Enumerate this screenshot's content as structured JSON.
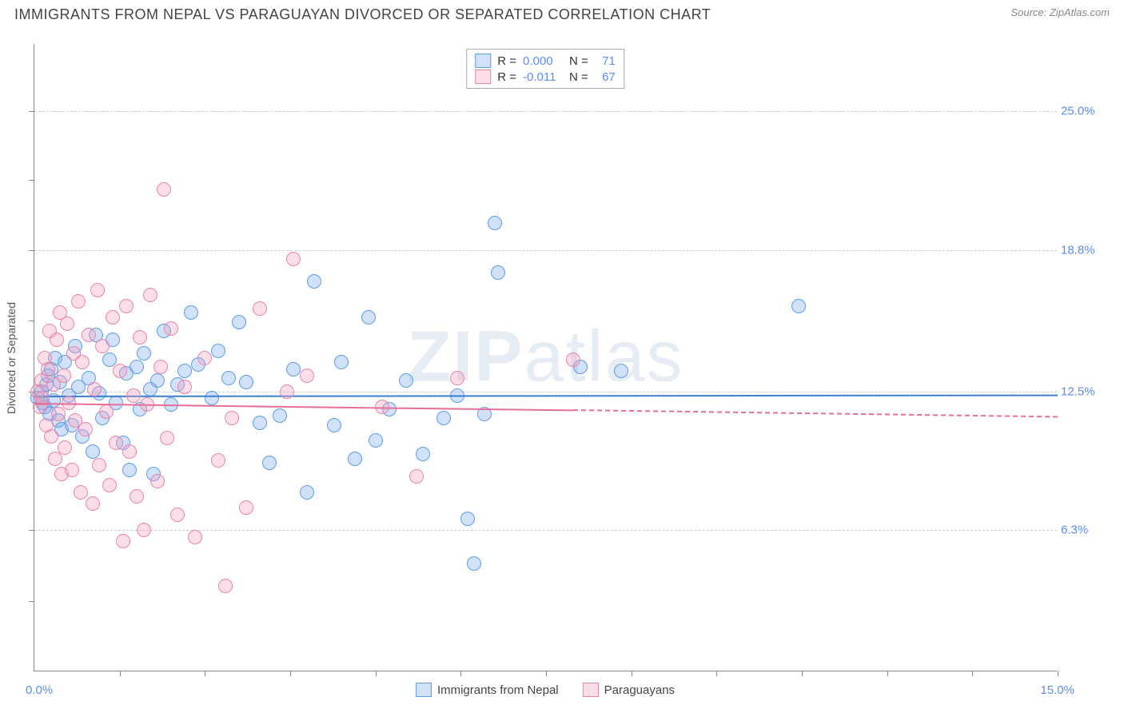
{
  "title": "IMMIGRANTS FROM NEPAL VS PARAGUAYAN DIVORCED OR SEPARATED CORRELATION CHART",
  "source": "Source: ZipAtlas.com",
  "watermark_bold": "ZIP",
  "watermark_light": "atlas",
  "chart": {
    "type": "scatter",
    "xlim": [
      0,
      15
    ],
    "ylim": [
      0,
      28
    ],
    "y_gridlines": [
      6.3,
      12.5,
      18.8,
      25.0
    ],
    "y_tick_labels": [
      "6.3%",
      "12.5%",
      "18.8%",
      "25.0%"
    ],
    "x_tick_positions": [
      1.25,
      2.5,
      3.75,
      5.0,
      6.25,
      7.5,
      8.75,
      10.0,
      11.25,
      12.5,
      13.75,
      15.0
    ],
    "y_tick_positions": [
      3.15,
      6.3,
      9.45,
      12.5,
      15.65,
      18.8,
      21.95,
      25.0
    ],
    "x_min_label": "0.0%",
    "x_max_label": "15.0%",
    "y_axis_label": "Divorced or Separated",
    "background_color": "#ffffff",
    "grid_color": "#cccccc",
    "axis_color": "#888888",
    "label_color": "#5b8def",
    "point_radius": 9,
    "point_stroke_width": 1.5,
    "series": [
      {
        "name": "Immigrants from Nepal",
        "fill": "rgba(120,170,235,0.35)",
        "stroke": "#5f9de8",
        "R": "0.000",
        "N": "71",
        "trend": {
          "y_start": 12.3,
          "y_end": 12.35,
          "x_start": 0,
          "x_end": 15,
          "style": "solid",
          "color": "#3a7fd5"
        },
        "points": [
          [
            0.05,
            12.2
          ],
          [
            0.1,
            12.5
          ],
          [
            0.12,
            12.0
          ],
          [
            0.15,
            11.8
          ],
          [
            0.18,
            12.8
          ],
          [
            0.2,
            13.2
          ],
          [
            0.22,
            11.5
          ],
          [
            0.25,
            13.5
          ],
          [
            0.28,
            12.1
          ],
          [
            0.3,
            14.0
          ],
          [
            0.35,
            11.2
          ],
          [
            0.38,
            12.9
          ],
          [
            0.4,
            10.8
          ],
          [
            0.45,
            13.8
          ],
          [
            0.5,
            12.3
          ],
          [
            0.55,
            11.0
          ],
          [
            0.6,
            14.5
          ],
          [
            0.65,
            12.7
          ],
          [
            0.7,
            10.5
          ],
          [
            0.8,
            13.1
          ],
          [
            0.85,
            9.8
          ],
          [
            0.9,
            15.0
          ],
          [
            0.95,
            12.4
          ],
          [
            1.0,
            11.3
          ],
          [
            1.1,
            13.9
          ],
          [
            1.15,
            14.8
          ],
          [
            1.2,
            12.0
          ],
          [
            1.3,
            10.2
          ],
          [
            1.35,
            13.3
          ],
          [
            1.4,
            9.0
          ],
          [
            1.5,
            13.6
          ],
          [
            1.55,
            11.7
          ],
          [
            1.6,
            14.2
          ],
          [
            1.7,
            12.6
          ],
          [
            1.75,
            8.8
          ],
          [
            1.8,
            13.0
          ],
          [
            1.9,
            15.2
          ],
          [
            2.0,
            11.9
          ],
          [
            2.1,
            12.8
          ],
          [
            2.2,
            13.4
          ],
          [
            2.3,
            16.0
          ],
          [
            2.4,
            13.7
          ],
          [
            2.6,
            12.2
          ],
          [
            2.7,
            14.3
          ],
          [
            2.85,
            13.1
          ],
          [
            3.0,
            15.6
          ],
          [
            3.1,
            12.9
          ],
          [
            3.3,
            11.1
          ],
          [
            3.45,
            9.3
          ],
          [
            3.6,
            11.4
          ],
          [
            3.8,
            13.5
          ],
          [
            4.0,
            8.0
          ],
          [
            4.1,
            17.4
          ],
          [
            4.4,
            11.0
          ],
          [
            4.5,
            13.8
          ],
          [
            4.7,
            9.5
          ],
          [
            4.9,
            15.8
          ],
          [
            5.0,
            10.3
          ],
          [
            5.2,
            11.7
          ],
          [
            5.45,
            13.0
          ],
          [
            5.7,
            9.7
          ],
          [
            6.0,
            11.3
          ],
          [
            6.2,
            12.3
          ],
          [
            6.35,
            6.8
          ],
          [
            6.45,
            4.8
          ],
          [
            6.6,
            11.5
          ],
          [
            6.75,
            20.0
          ],
          [
            6.8,
            17.8
          ],
          [
            8.0,
            13.6
          ],
          [
            8.6,
            13.4
          ],
          [
            11.2,
            16.3
          ]
        ]
      },
      {
        "name": "Paraguayans",
        "fill": "rgba(245,160,190,0.35)",
        "stroke": "#e985ab",
        "R": "-0.011",
        "N": "67",
        "trend": {
          "y_start": 12.0,
          "y_end": 11.7,
          "x_start": 0,
          "x_end": 7.9,
          "style": "solid",
          "color": "#e56f99"
        },
        "trend_ext": {
          "y_start": 11.7,
          "y_end": 11.4,
          "x_start": 7.9,
          "x_end": 15,
          "style": "dashed",
          "color": "#e56f99"
        },
        "points": [
          [
            0.05,
            12.5
          ],
          [
            0.08,
            11.8
          ],
          [
            0.1,
            13.0
          ],
          [
            0.12,
            12.2
          ],
          [
            0.15,
            14.0
          ],
          [
            0.18,
            11.0
          ],
          [
            0.2,
            13.5
          ],
          [
            0.22,
            15.2
          ],
          [
            0.25,
            10.5
          ],
          [
            0.28,
            12.8
          ],
          [
            0.3,
            9.5
          ],
          [
            0.33,
            14.8
          ],
          [
            0.35,
            11.5
          ],
          [
            0.38,
            16.0
          ],
          [
            0.4,
            8.8
          ],
          [
            0.43,
            13.2
          ],
          [
            0.45,
            10.0
          ],
          [
            0.48,
            15.5
          ],
          [
            0.5,
            12.0
          ],
          [
            0.55,
            9.0
          ],
          [
            0.58,
            14.2
          ],
          [
            0.6,
            11.2
          ],
          [
            0.65,
            16.5
          ],
          [
            0.68,
            8.0
          ],
          [
            0.7,
            13.8
          ],
          [
            0.75,
            10.8
          ],
          [
            0.8,
            15.0
          ],
          [
            0.85,
            7.5
          ],
          [
            0.88,
            12.6
          ],
          [
            0.92,
            17.0
          ],
          [
            0.95,
            9.2
          ],
          [
            1.0,
            14.5
          ],
          [
            1.05,
            11.6
          ],
          [
            1.1,
            8.3
          ],
          [
            1.15,
            15.8
          ],
          [
            1.2,
            10.2
          ],
          [
            1.25,
            13.4
          ],
          [
            1.3,
            5.8
          ],
          [
            1.35,
            16.3
          ],
          [
            1.4,
            9.8
          ],
          [
            1.45,
            12.3
          ],
          [
            1.5,
            7.8
          ],
          [
            1.55,
            14.9
          ],
          [
            1.6,
            6.3
          ],
          [
            1.65,
            11.9
          ],
          [
            1.7,
            16.8
          ],
          [
            1.8,
            8.5
          ],
          [
            1.85,
            13.6
          ],
          [
            1.9,
            21.5
          ],
          [
            1.95,
            10.4
          ],
          [
            2.0,
            15.3
          ],
          [
            2.1,
            7.0
          ],
          [
            2.2,
            12.7
          ],
          [
            2.35,
            6.0
          ],
          [
            2.5,
            14.0
          ],
          [
            2.7,
            9.4
          ],
          [
            2.8,
            3.8
          ],
          [
            2.9,
            11.3
          ],
          [
            3.1,
            7.3
          ],
          [
            3.3,
            16.2
          ],
          [
            3.7,
            12.5
          ],
          [
            3.8,
            18.4
          ],
          [
            4.0,
            13.2
          ],
          [
            5.1,
            11.8
          ],
          [
            5.6,
            8.7
          ],
          [
            6.2,
            13.1
          ],
          [
            7.9,
            13.9
          ]
        ]
      }
    ]
  },
  "legend_bottom": [
    {
      "label": "Immigrants from Nepal"
    },
    {
      "label": "Paraguayans"
    }
  ]
}
